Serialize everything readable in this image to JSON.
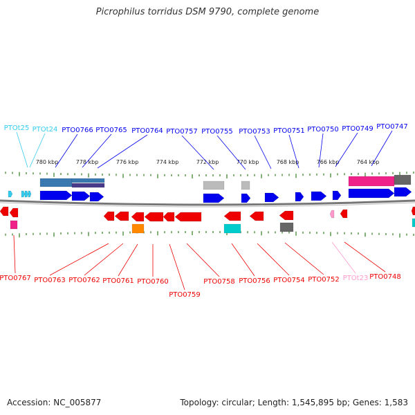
{
  "title": "Picrophilus torridus DSM 9790, complete genome",
  "footer": {
    "accession": "Accession: NC_005877",
    "topology": "Topology: circular; Length: 1,545,895 bp; Genes: 1,583"
  },
  "colors": {
    "axis": "#888888",
    "tick": "#2e7d1e",
    "forward_gene": "#0000ee",
    "reverse_gene": "#ee0000",
    "trna_forward": "#33ccee",
    "trna_reverse": "#ff99cc",
    "rrna": "#ee2288",
    "misc_orange": "#ff8800",
    "misc_cyan": "#00cccc",
    "misc_gray": "#666666",
    "misc_lightgray": "#bbbbbb",
    "misc_steel": "#3a78b0",
    "misc_purple": "#4a3a8a"
  },
  "ruler": {
    "tick_labels": [
      "780 kbp",
      "778 kbp",
      "776 kbp",
      "774 kbp",
      "772 kbp",
      "770 kbp",
      "768 kbp",
      "766 kbp",
      "764 kbp"
    ]
  },
  "top_labels": [
    {
      "text": "PTOt25",
      "kind": "trna"
    },
    {
      "text": "PTOt24",
      "kind": "trna"
    },
    {
      "text": "PTO0766",
      "kind": "gene"
    },
    {
      "text": "PTO0765",
      "kind": "gene"
    },
    {
      "text": "PTO0764",
      "kind": "gene"
    },
    {
      "text": "PTO0757",
      "kind": "gene"
    },
    {
      "text": "PTO0755",
      "kind": "gene"
    },
    {
      "text": "PTO0753",
      "kind": "gene"
    },
    {
      "text": "PTO0751",
      "kind": "gene"
    },
    {
      "text": "PTO0750",
      "kind": "gene"
    },
    {
      "text": "PTO0749",
      "kind": "gene"
    },
    {
      "text": "PTO0747",
      "kind": "gene"
    }
  ],
  "bottom_labels": [
    {
      "text": "PTO0767",
      "kind": "gene"
    },
    {
      "text": "PTO0763",
      "kind": "gene"
    },
    {
      "text": "PTO0762",
      "kind": "gene"
    },
    {
      "text": "PTO0761",
      "kind": "gene"
    },
    {
      "text": "PTO0760",
      "kind": "gene"
    },
    {
      "text": "PTO0759",
      "kind": "gene"
    },
    {
      "text": "PTO0758",
      "kind": "gene"
    },
    {
      "text": "PTO0756",
      "kind": "gene"
    },
    {
      "text": "PTO0754",
      "kind": "gene"
    },
    {
      "text": "PTO0752",
      "kind": "gene"
    },
    {
      "text": "PTOt23",
      "kind": "trna"
    },
    {
      "text": "PTO0748",
      "kind": "gene"
    }
  ]
}
